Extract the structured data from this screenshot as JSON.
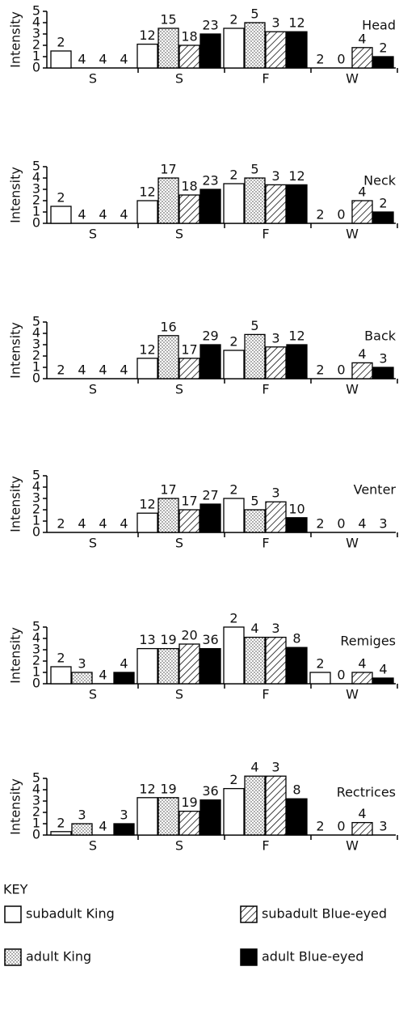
{
  "chart_data": [
    {
      "type": "bar",
      "title": "Head",
      "y_label": "Intensity",
      "categories": [
        "S",
        "S",
        "F",
        "W"
      ],
      "ylim": [
        0,
        5
      ],
      "yticks": [
        0,
        1,
        2,
        3,
        4,
        5
      ],
      "series": [
        {
          "pattern": "none",
          "values": [
            1.5,
            2.1,
            3.5,
            0
          ],
          "sample_sizes": [
            2,
            12,
            2,
            2
          ]
        },
        {
          "pattern": "dots",
          "values": [
            0,
            3.5,
            4.0,
            0
          ],
          "sample_sizes": [
            4,
            15,
            5,
            0
          ]
        },
        {
          "pattern": "hatch",
          "values": [
            0,
            2.0,
            3.2,
            1.8
          ],
          "sample_sizes": [
            4,
            18,
            3,
            4
          ]
        },
        {
          "pattern": "solid",
          "values": [
            0,
            3.0,
            3.2,
            1.0
          ],
          "sample_sizes": [
            4,
            23,
            12,
            2
          ]
        }
      ]
    },
    {
      "type": "bar",
      "title": "Neck",
      "y_label": "Intensity",
      "categories": [
        "S",
        "S",
        "F",
        "W"
      ],
      "ylim": [
        0,
        5
      ],
      "yticks": [
        0,
        1,
        2,
        3,
        4,
        5
      ],
      "series": [
        {
          "pattern": "none",
          "values": [
            1.5,
            2.0,
            3.5,
            0
          ],
          "sample_sizes": [
            2,
            12,
            2,
            2
          ]
        },
        {
          "pattern": "dots",
          "values": [
            0,
            4.0,
            4.0,
            0
          ],
          "sample_sizes": [
            4,
            17,
            5,
            0
          ]
        },
        {
          "pattern": "hatch",
          "values": [
            0,
            2.5,
            3.4,
            2.0
          ],
          "sample_sizes": [
            4,
            18,
            3,
            4
          ]
        },
        {
          "pattern": "solid",
          "values": [
            0,
            3.0,
            3.4,
            1.0
          ],
          "sample_sizes": [
            4,
            23,
            12,
            2
          ]
        }
      ]
    },
    {
      "type": "bar",
      "title": "Back",
      "y_label": "Intensity",
      "categories": [
        "S",
        "S",
        "F",
        "W"
      ],
      "ylim": [
        0,
        5
      ],
      "yticks": [
        0,
        1,
        2,
        3,
        4,
        5
      ],
      "series": [
        {
          "pattern": "none",
          "values": [
            0,
            1.8,
            2.5,
            0
          ],
          "sample_sizes": [
            2,
            12,
            2,
            2
          ]
        },
        {
          "pattern": "dots",
          "values": [
            0,
            3.8,
            3.9,
            0
          ],
          "sample_sizes": [
            4,
            16,
            5,
            0
          ]
        },
        {
          "pattern": "hatch",
          "values": [
            0,
            1.8,
            2.8,
            1.4
          ],
          "sample_sizes": [
            4,
            17,
            3,
            4
          ]
        },
        {
          "pattern": "solid",
          "values": [
            0,
            3.0,
            3.0,
            1.0
          ],
          "sample_sizes": [
            4,
            29,
            12,
            3
          ]
        }
      ]
    },
    {
      "type": "bar",
      "title": "Venter",
      "y_label": "Intensity",
      "categories": [
        "S",
        "S",
        "F",
        "W"
      ],
      "ylim": [
        0,
        5
      ],
      "yticks": [
        0,
        1,
        2,
        3,
        4,
        5
      ],
      "series": [
        {
          "pattern": "none",
          "values": [
            0,
            1.7,
            3.0,
            0
          ],
          "sample_sizes": [
            2,
            12,
            2,
            2
          ]
        },
        {
          "pattern": "dots",
          "values": [
            0,
            3.0,
            2.0,
            0
          ],
          "sample_sizes": [
            4,
            17,
            5,
            0
          ]
        },
        {
          "pattern": "hatch",
          "values": [
            0,
            2.0,
            2.7,
            0
          ],
          "sample_sizes": [
            4,
            17,
            3,
            4
          ]
        },
        {
          "pattern": "solid",
          "values": [
            0,
            2.5,
            1.3,
            0
          ],
          "sample_sizes": [
            4,
            27,
            10,
            3
          ]
        }
      ]
    },
    {
      "type": "bar",
      "title": "Remiges",
      "y_label": "Intensity",
      "categories": [
        "S",
        "S",
        "F",
        "W"
      ],
      "ylim": [
        0,
        5
      ],
      "yticks": [
        0,
        1,
        2,
        3,
        4,
        5
      ],
      "series": [
        {
          "pattern": "none",
          "values": [
            1.5,
            3.1,
            5.0,
            1.0
          ],
          "sample_sizes": [
            2,
            13,
            2,
            2
          ]
        },
        {
          "pattern": "dots",
          "values": [
            1.0,
            3.1,
            4.1,
            0
          ],
          "sample_sizes": [
            3,
            19,
            4,
            0
          ]
        },
        {
          "pattern": "hatch",
          "values": [
            0,
            3.5,
            4.1,
            1.0
          ],
          "sample_sizes": [
            4,
            20,
            3,
            4
          ]
        },
        {
          "pattern": "solid",
          "values": [
            1.0,
            3.1,
            3.2,
            0.5
          ],
          "sample_sizes": [
            4,
            36,
            8,
            4
          ]
        }
      ]
    },
    {
      "type": "bar",
      "title": "Rectrices",
      "y_label": "Intensity",
      "categories": [
        "S",
        "S",
        "F",
        "W"
      ],
      "ylim": [
        0,
        5
      ],
      "yticks": [
        0,
        1,
        2,
        3,
        4,
        5
      ],
      "series": [
        {
          "pattern": "none",
          "values": [
            0.3,
            3.3,
            4.1,
            0
          ],
          "sample_sizes": [
            2,
            12,
            2,
            2
          ]
        },
        {
          "pattern": "dots",
          "values": [
            1.0,
            3.3,
            5.2,
            0
          ],
          "sample_sizes": [
            3,
            19,
            4,
            0
          ]
        },
        {
          "pattern": "hatch",
          "values": [
            0,
            2.1,
            5.2,
            1.1
          ],
          "sample_sizes": [
            4,
            19,
            3,
            4
          ]
        },
        {
          "pattern": "solid",
          "values": [
            1.0,
            3.1,
            3.2,
            0
          ],
          "sample_sizes": [
            3,
            36,
            8,
            3
          ]
        }
      ]
    }
  ],
  "key": {
    "title": "KEY",
    "entries": [
      {
        "name": "subadult King",
        "pattern": "none"
      },
      {
        "name": "adult King",
        "pattern": "dots"
      },
      {
        "name": "subadult Blue-eyed",
        "pattern": "hatch"
      },
      {
        "name": "adult Blue-eyed",
        "pattern": "solid"
      }
    ]
  }
}
